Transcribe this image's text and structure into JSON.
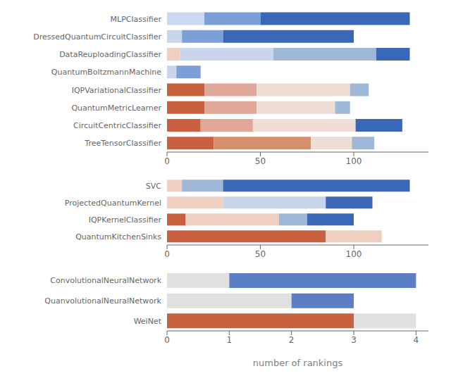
{
  "chart_data": [
    {
      "type": "bar",
      "orientation": "horizontal",
      "stacked": true,
      "grid": false,
      "categories": [
        "MLPClassifier",
        "DressedQuantumCircuitClassifier",
        "DataReuploadingClassifier",
        "QuantumBoltzmannMachine",
        "IQPVariationalClassifier",
        "QuantumMetricLearner",
        "CircuitCentricClassifier",
        "TreeTensorClassifier"
      ],
      "series": [
        {
          "values": [
            20,
            8,
            7,
            5,
            20,
            20,
            18,
            25
          ],
          "colors": [
            "#ccd8ed",
            "#c8d5ea",
            "#eecfc0",
            "#c8d5ea",
            "#c96040",
            "#c96040",
            "#c96040",
            "#c96040"
          ]
        },
        {
          "values": [
            30,
            22,
            50,
            13,
            28,
            28,
            28,
            52
          ],
          "colors": [
            "#7b9fd6",
            "#7b9fd6",
            "#c8d5ea",
            "#7b9fd6",
            "#e0a898",
            "#e0a898",
            "#e0a898",
            "#d4906b"
          ]
        },
        {
          "values": [
            80,
            70,
            55,
            null,
            50,
            42,
            55,
            22
          ],
          "colors": [
            "#3a67b8",
            "#3a67b8",
            "#a0b8d8",
            null,
            "#edddd5",
            "#edddd5",
            "#edddd5",
            "#edddd5"
          ]
        },
        {
          "values": [
            null,
            null,
            18,
            null,
            10,
            8,
            25,
            12
          ],
          "colors": [
            null,
            null,
            "#3a67b8",
            null,
            "#a0b8d8",
            "#a0b8d8",
            "#3a67b8",
            "#a0b8d8"
          ]
        }
      ],
      "xlim": [
        0,
        140
      ],
      "xticks": [
        0,
        50,
        100
      ]
    },
    {
      "type": "bar",
      "orientation": "horizontal",
      "stacked": true,
      "grid": false,
      "categories": [
        "SVC",
        "ProjectedQuantumKernel",
        "IQPKernelClassifier",
        "QuantumKitchenSinks"
      ],
      "series": [
        {
          "values": [
            8,
            30,
            10,
            85
          ],
          "colors": [
            "#eecfc0",
            "#eecfc0",
            "#c96040",
            "#c96040"
          ]
        },
        {
          "values": [
            22,
            55,
            50,
            30
          ],
          "colors": [
            "#a0b8d8",
            "#c8d5ea",
            "#eecfc0",
            "#eecfc0"
          ]
        },
        {
          "values": [
            100,
            25,
            15,
            null
          ],
          "colors": [
            "#3a67b8",
            "#3a67b8",
            "#a0b8d8",
            null
          ]
        },
        {
          "values": [
            null,
            null,
            25,
            null
          ],
          "colors": [
            null,
            null,
            "#3a67b8",
            null
          ]
        }
      ],
      "xlim": [
        0,
        140
      ],
      "xticks": [
        0,
        50,
        100
      ]
    },
    {
      "type": "bar",
      "orientation": "horizontal",
      "stacked": true,
      "grid": false,
      "categories": [
        "ConvolutionalNeuralNetwork",
        "QuanvolutionalNeuralNetwork",
        "WeiNet"
      ],
      "series": [
        {
          "values": [
            1.0,
            2.0,
            3.0
          ],
          "colors": [
            "#e0e0e0",
            "#e0e0e0",
            "#c96040"
          ]
        },
        {
          "values": [
            3.0,
            1.0,
            1.0
          ],
          "colors": [
            "#5b7ec4",
            "#5b7ec4",
            "#e0e0e0"
          ]
        }
      ],
      "xlim": [
        0,
        4.2
      ],
      "xticks": [
        0,
        1,
        2,
        3,
        4
      ],
      "xlabel": "number of rankings"
    }
  ]
}
